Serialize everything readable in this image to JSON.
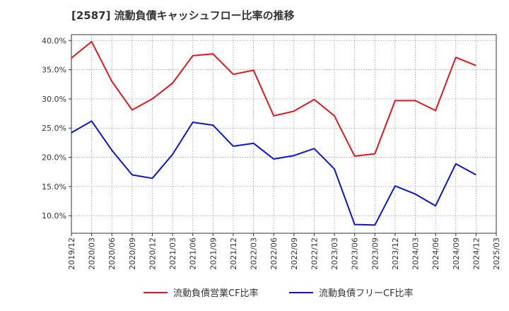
{
  "title": "[2587]  流動負債キャッシュフロー比率の推移",
  "chart_data": {
    "type": "line",
    "title": "[2587]  流動負債キャッシュフロー比率の推移",
    "xlabel": "",
    "ylabel": "",
    "categories": [
      "2019/12",
      "2020/03",
      "2020/06",
      "2020/09",
      "2020/12",
      "2021/03",
      "2021/06",
      "2021/09",
      "2021/12",
      "2022/03",
      "2022/06",
      "2022/09",
      "2022/12",
      "2023/03",
      "2023/06",
      "2023/09",
      "2023/12",
      "2024/03",
      "2024/06",
      "2024/09",
      "2024/12",
      "2025/03"
    ],
    "y_ticks": [
      "10.0%",
      "15.0%",
      "20.0%",
      "25.0%",
      "30.0%",
      "35.0%",
      "40.0%"
    ],
    "y_tick_values": [
      10,
      15,
      20,
      25,
      30,
      35,
      40
    ],
    "ylim": [
      7,
      41
    ],
    "grid": true,
    "legend_position": "bottom",
    "series": [
      {
        "name": "流動負債営業CF比率",
        "color": "#e8141c",
        "values": [
          37.0,
          39.8,
          33.0,
          28.1,
          30.0,
          32.7,
          37.4,
          37.7,
          34.2,
          34.9,
          27.1,
          27.9,
          29.9,
          27.1,
          20.2,
          20.6,
          29.7,
          29.7,
          28.0,
          37.1,
          35.7,
          null
        ]
      },
      {
        "name": "流動負債フリーCF比率",
        "color": "#0a14d8",
        "values": [
          24.2,
          26.2,
          21.2,
          17.0,
          16.4,
          20.5,
          26.0,
          25.5,
          21.9,
          22.4,
          19.7,
          20.3,
          21.5,
          18.0,
          8.5,
          8.4,
          15.1,
          13.7,
          11.7,
          18.9,
          17.0,
          null
        ]
      }
    ]
  }
}
